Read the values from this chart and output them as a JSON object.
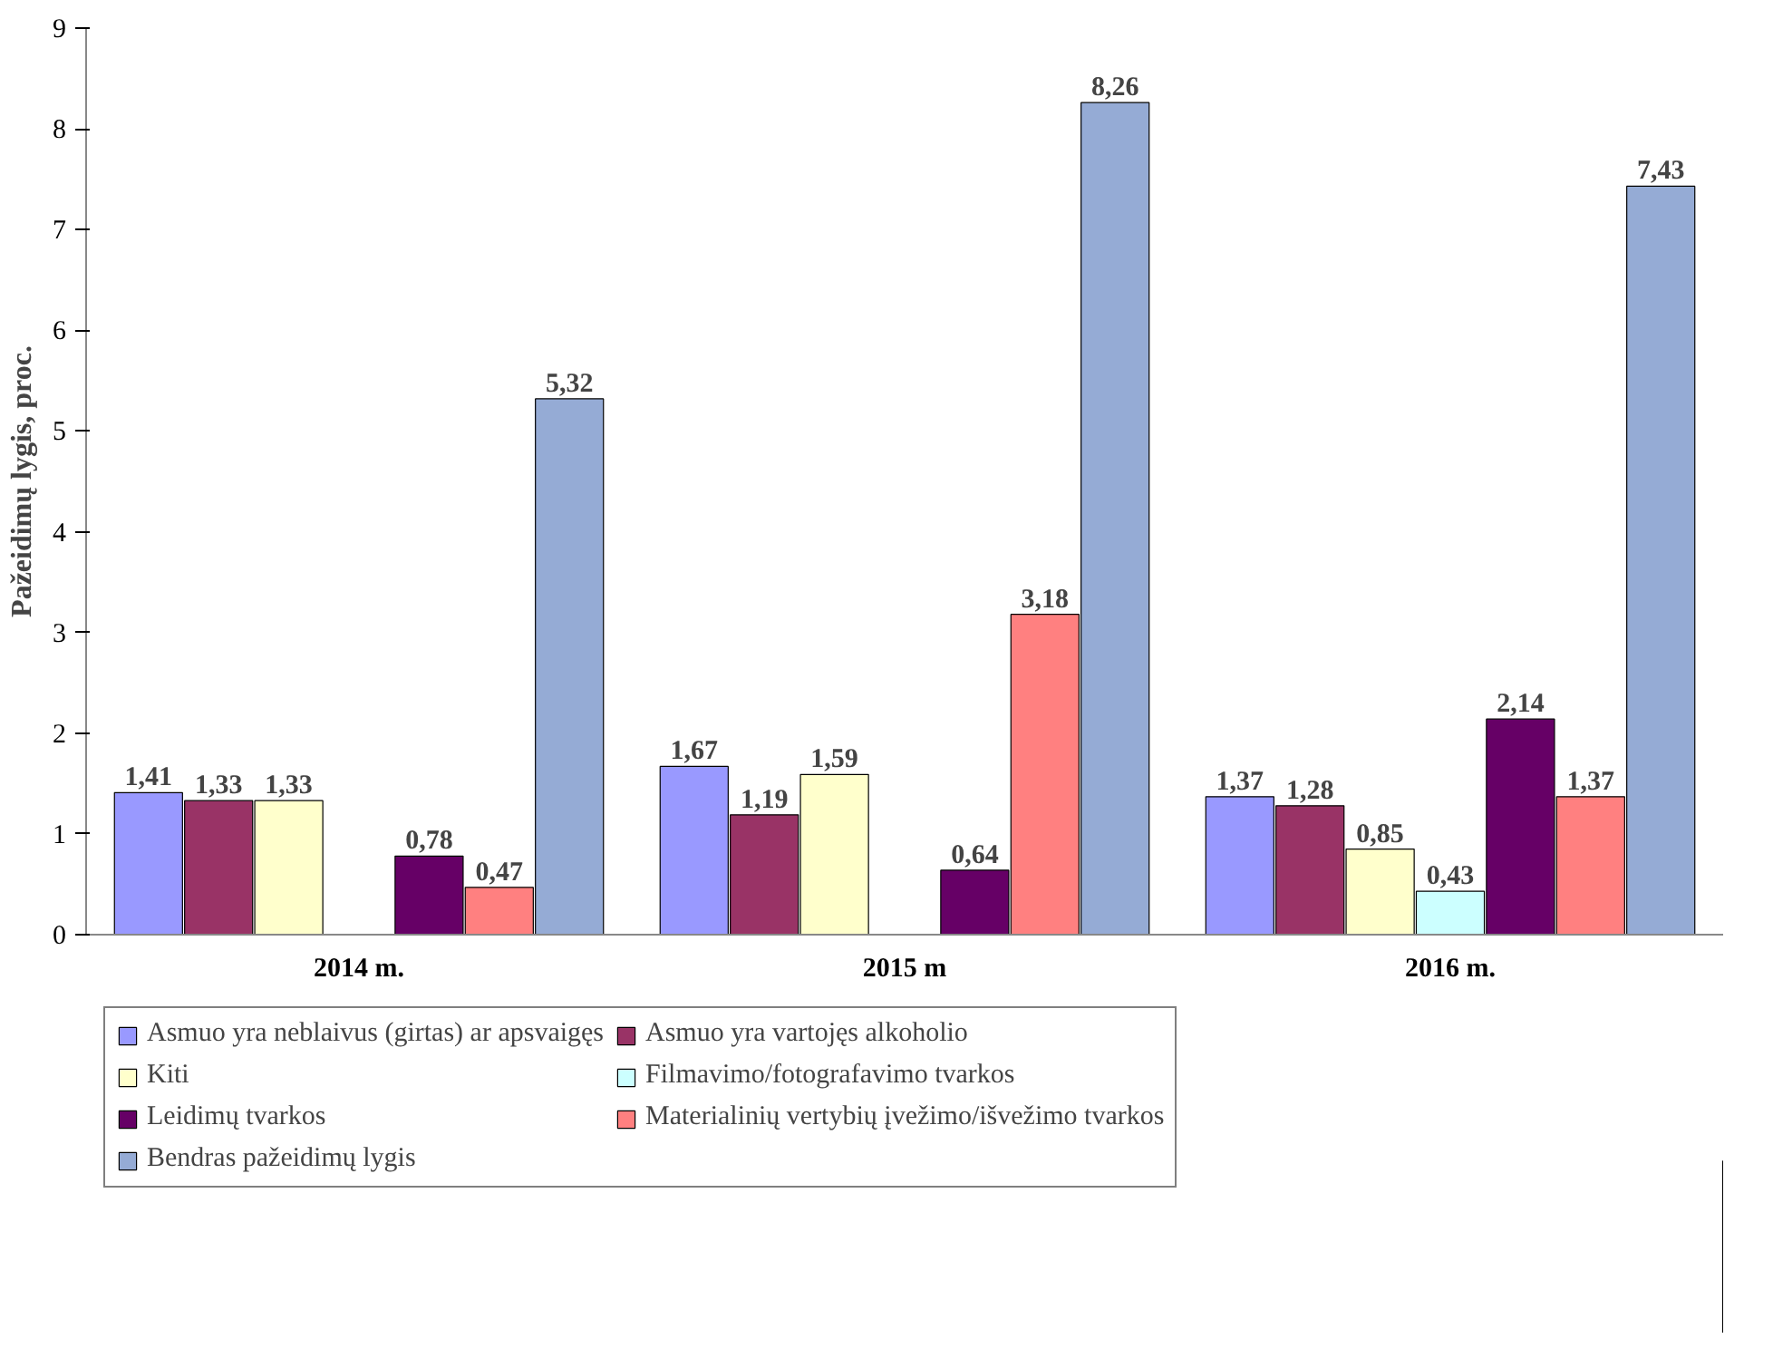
{
  "chart_data": {
    "type": "bar",
    "ylabel": "Pažeidimų lygis, proc.",
    "categories": [
      "2014 m.",
      "2015 m",
      "2016 m."
    ],
    "ylim": [
      0,
      9
    ],
    "yticks": [
      0,
      1,
      2,
      3,
      4,
      5,
      6,
      7,
      8,
      9
    ],
    "grid": false,
    "legend": "bottom",
    "series": [
      {
        "name": "Asmuo yra neblaivus (girtas) ar apsvaigęs",
        "color": "#9999ff",
        "values": [
          1.41,
          1.67,
          1.37
        ],
        "value_labels": [
          "1,41",
          "1,67",
          "1,37"
        ]
      },
      {
        "name": "Asmuo yra vartojęs alkoholio",
        "color": "#993366",
        "values": [
          1.33,
          1.19,
          1.28
        ],
        "value_labels": [
          "1,33",
          "1,19",
          "1,28"
        ]
      },
      {
        "name": "Kiti",
        "color": "#ffffcc",
        "values": [
          1.33,
          1.59,
          0.85
        ],
        "value_labels": [
          "1,33",
          "1,59",
          "0,85"
        ]
      },
      {
        "name": "Filmavimo/fotografavimo tvarkos",
        "color": "#ccffff",
        "values": [
          null,
          null,
          0.43
        ],
        "value_labels": [
          null,
          null,
          "0,43"
        ]
      },
      {
        "name": "Leidimų tvarkos",
        "color": "#660066",
        "values": [
          0.78,
          0.64,
          2.14
        ],
        "value_labels": [
          "0,78",
          "0,64",
          "2,14"
        ]
      },
      {
        "name": "Materialinių vertybių įvežimo/išvežimo tvarkos",
        "color": "#ff8080",
        "values": [
          0.47,
          3.18,
          1.37
        ],
        "value_labels": [
          "0,47",
          "3,18",
          "1,37"
        ]
      },
      {
        "name": "Bendras pažeidimų lygis",
        "color": "#95abd5",
        "values": [
          5.32,
          8.26,
          7.43
        ],
        "value_labels": [
          "5,32",
          "8,26",
          "7,43"
        ]
      }
    ]
  }
}
